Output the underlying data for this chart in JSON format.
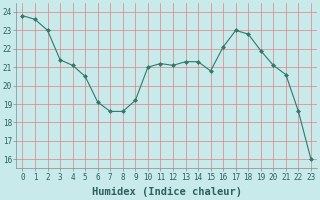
{
  "x": [
    0,
    1,
    2,
    3,
    4,
    5,
    6,
    7,
    8,
    9,
    10,
    11,
    12,
    13,
    14,
    15,
    16,
    17,
    18,
    19,
    20,
    21,
    22,
    23
  ],
  "y": [
    23.8,
    23.6,
    23.0,
    21.4,
    21.1,
    20.5,
    19.1,
    18.6,
    18.6,
    19.2,
    21.0,
    21.2,
    21.1,
    21.3,
    21.3,
    20.8,
    22.1,
    23.0,
    22.8,
    21.9,
    21.1,
    20.6,
    18.6,
    16.0
  ],
  "line_color": "#2d7a6e",
  "marker": "D",
  "marker_size": 2.0,
  "bg_color": "#c8eaea",
  "grid_color": "#e08080",
  "xlabel": "Humidex (Indice chaleur)",
  "ylim": [
    15.5,
    24.5
  ],
  "xlim": [
    -0.5,
    23.5
  ],
  "yticks": [
    16,
    17,
    18,
    19,
    20,
    21,
    22,
    23,
    24
  ],
  "xticks": [
    0,
    1,
    2,
    3,
    4,
    5,
    6,
    7,
    8,
    9,
    10,
    11,
    12,
    13,
    14,
    15,
    16,
    17,
    18,
    19,
    20,
    21,
    22,
    23
  ],
  "tick_fontsize": 5.5,
  "xlabel_fontsize": 7.5,
  "label_color": "#2d6060"
}
